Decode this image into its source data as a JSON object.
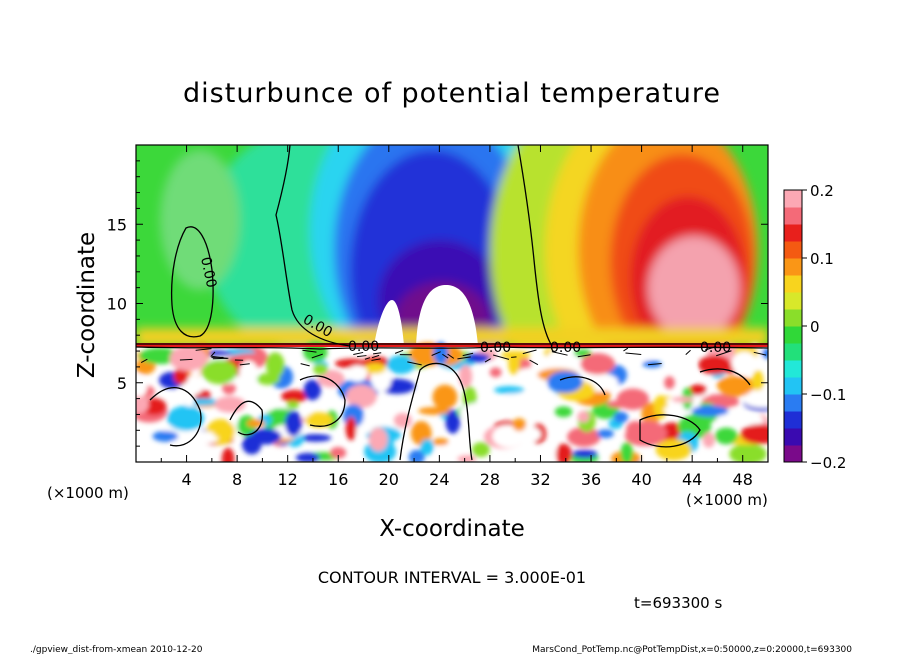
{
  "chart_data": {
    "type": "heatmap",
    "title": "disturbunce of potential temperature",
    "xlabel": "X-coordinate",
    "ylabel": "Z-coordinate",
    "x_unit": "(×1000 m)",
    "y_unit": "(×1000 m)",
    "xlim": [
      0,
      50
    ],
    "ylim": [
      0,
      20
    ],
    "x_ticks": [
      "4",
      "8",
      "12",
      "16",
      "20",
      "24",
      "28",
      "32",
      "36",
      "40",
      "44",
      "48"
    ],
    "y_ticks": [
      "5",
      "10",
      "15"
    ],
    "colorbar": {
      "range": [
        -0.2,
        0.2
      ],
      "ticks": [
        "0.2",
        "0.1",
        "0",
        "−0.1",
        "−0.2"
      ],
      "colors": [
        "#7a0a8a",
        "#3a0ab0",
        "#1f2fd6",
        "#2a7cf2",
        "#22c4f4",
        "#22e8d8",
        "#22e07a",
        "#30d838",
        "#8ade2a",
        "#d8e82a",
        "#f8d41e",
        "#fa9616",
        "#f45a12",
        "#e8201c",
        "#f46a78",
        "#fca8b4"
      ]
    },
    "contour_labels": [
      "0.00",
      "0.00",
      "0.00",
      "0.00",
      "0.00",
      "0.00"
    ],
    "contour_interval_text": "CONTOUR INTERVAL = 3.000E-01",
    "time_text": "t=693300 s",
    "footer_left": "./gpview_dist-from-xmean   2010-12-20",
    "footer_right": "MarsCond_PotTemp.nc@PotTempDist,x=0:50000,z=0:20000,t=693300"
  }
}
